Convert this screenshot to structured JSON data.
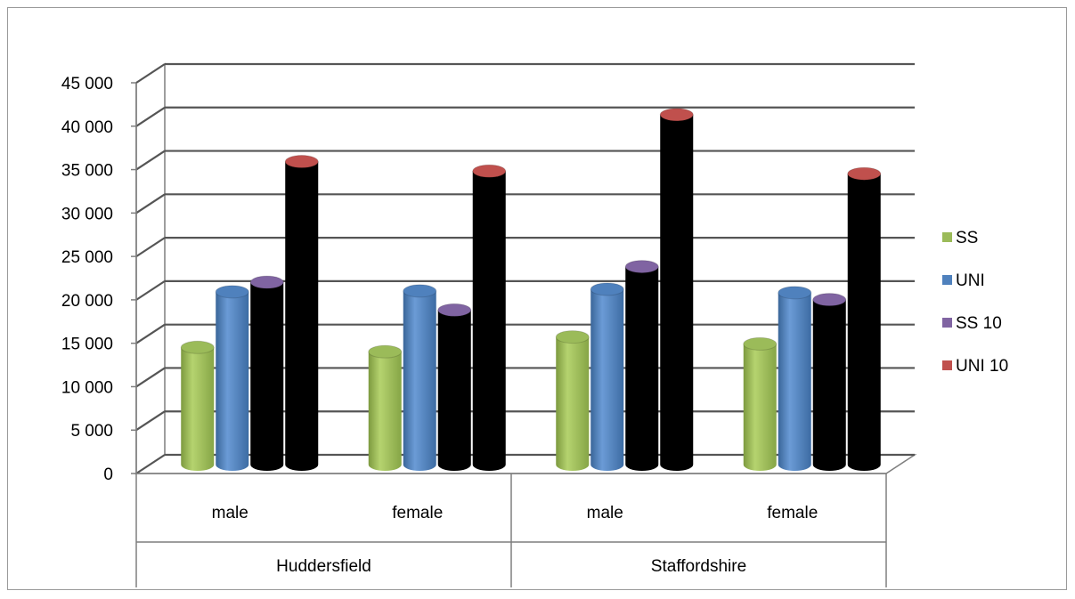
{
  "chart_data": {
    "type": "bar",
    "categories": [
      {
        "group": "Huddersfield",
        "label": "male"
      },
      {
        "group": "Huddersfield",
        "label": "female"
      },
      {
        "group": "Staffordshire",
        "label": "male"
      },
      {
        "group": "Staffordshire",
        "label": "female"
      }
    ],
    "groups": [
      "Huddersfield",
      "Staffordshire"
    ],
    "series": [
      {
        "name": "SS",
        "color": "#9bbb59",
        "values": [
          13500,
          13000,
          14700,
          13900
        ]
      },
      {
        "name": "UNI",
        "color": "#4f81bd",
        "values": [
          19900,
          20000,
          20200,
          19800
        ]
      },
      {
        "name": "SS 10",
        "color": "#8064a2",
        "values": [
          21000,
          17800,
          22800,
          19000
        ]
      },
      {
        "name": "UNI 10",
        "color": "#c0504d",
        "values": [
          34900,
          33800,
          40300,
          33500
        ]
      }
    ],
    "ylim": [
      0,
      45000
    ],
    "yticks": [
      "0",
      "5 000",
      "10 000",
      "15 000",
      "20 000",
      "25 000",
      "30 000",
      "35 000",
      "40 000",
      "45 000"
    ],
    "grid": true,
    "three_d": true,
    "legend_position": "right",
    "title": "",
    "xlabel": "",
    "ylabel": ""
  }
}
